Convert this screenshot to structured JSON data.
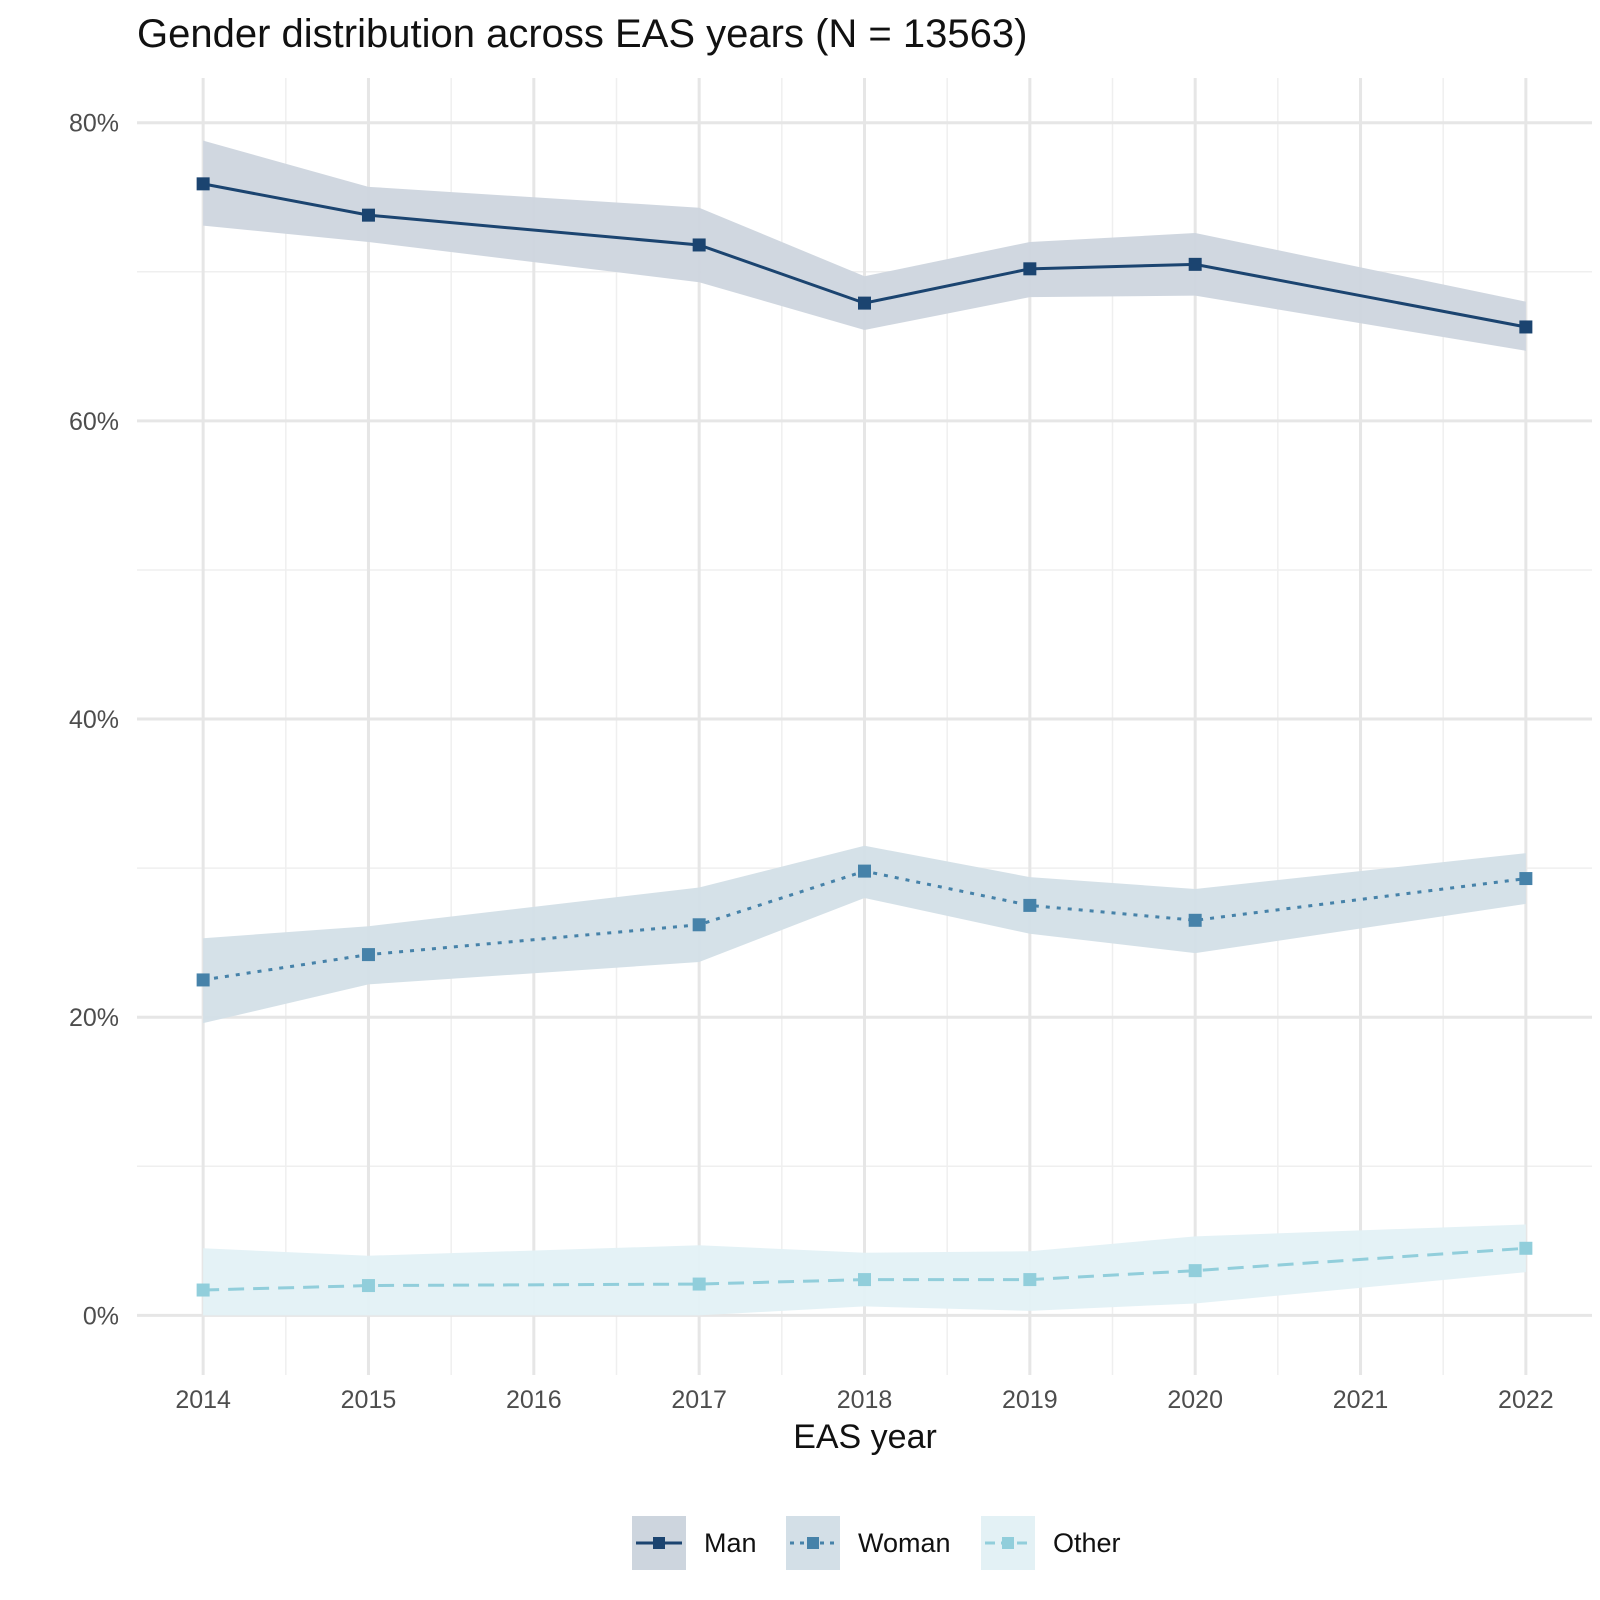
{
  "chart_data": {
    "type": "line",
    "title": "Gender distribution across EAS years (N = 13563)",
    "xlabel": "EAS year",
    "ylabel": "",
    "x": [
      2014,
      2015,
      2017,
      2018,
      2019,
      2020,
      2022
    ],
    "x_ticks": [
      "2014",
      "2015",
      "2016",
      "2017",
      "2018",
      "2019",
      "2020",
      "2021",
      "2022"
    ],
    "xlim": [
      2013.6,
      2022.4
    ],
    "ylim": [
      -4,
      83
    ],
    "y_ticks": [
      0,
      20,
      40,
      60,
      80
    ],
    "y_tick_labels": [
      "0%",
      "20%",
      "40%",
      "60%",
      "80%"
    ],
    "grid": true,
    "legend_position": "bottom",
    "series": [
      {
        "name": "Man",
        "color": "#1b4470",
        "band_color": "#cdd5de",
        "line_style": "solid",
        "values": [
          75.9,
          73.8,
          71.8,
          67.9,
          70.2,
          70.5,
          66.3
        ],
        "lower": [
          73.1,
          72.0,
          69.3,
          66.1,
          68.3,
          68.4,
          64.7
        ],
        "upper": [
          78.8,
          75.7,
          74.3,
          69.7,
          72.0,
          72.6,
          68.0
        ]
      },
      {
        "name": "Woman",
        "color": "#4682a9",
        "band_color": "#d3dfe7",
        "line_style": "dotted",
        "values": [
          22.5,
          24.2,
          26.2,
          29.8,
          27.5,
          26.5,
          29.3
        ],
        "lower": [
          19.6,
          22.2,
          23.7,
          28.0,
          25.6,
          24.3,
          27.6
        ],
        "upper": [
          25.3,
          26.1,
          28.7,
          31.5,
          29.4,
          28.6,
          31.0
        ]
      },
      {
        "name": "Other",
        "color": "#91cedb",
        "band_color": "#e3f1f5",
        "line_style": "dashed",
        "values": [
          1.7,
          2.0,
          2.1,
          2.4,
          2.4,
          3.0,
          4.5
        ],
        "lower": [
          0.0,
          0.0,
          0.0,
          0.6,
          0.3,
          0.8,
          2.9
        ],
        "upper": [
          4.5,
          4.0,
          4.7,
          4.2,
          4.3,
          5.3,
          6.1
        ]
      }
    ]
  }
}
